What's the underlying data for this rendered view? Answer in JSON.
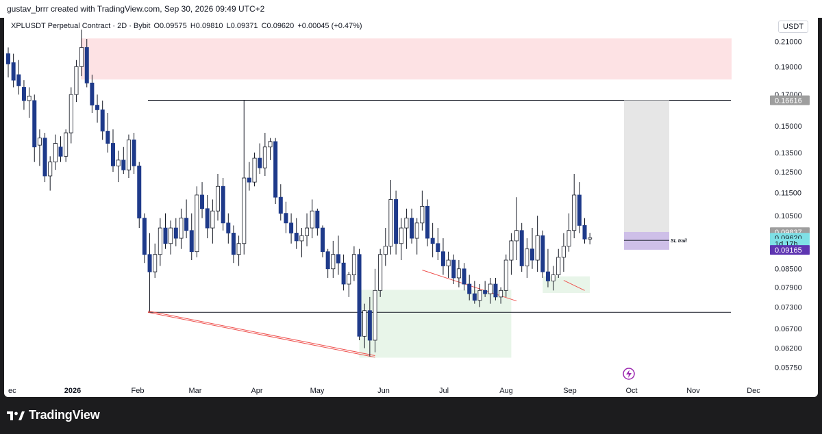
{
  "header": {
    "caption": "gustav_brrr created with TradingView.com, Sep 30, 2026 09:49 UTC+2"
  },
  "legend": {
    "symbol": "XPLUSDT Perpetual Contract · 2D · Bybit",
    "open": "O0.09575",
    "high": "H0.09810",
    "low": "L0.09371",
    "close": "C0.09620",
    "change": "+0.00045 (+0.47%)"
  },
  "currency": "USDT",
  "colors": {
    "bull": "#ffffff",
    "bear": "#1e3a8a",
    "supply_zone": "#fde2e4",
    "demand_zone": "#e8f5e9",
    "trendline": "#ef5350",
    "position_stop": "#b39ddb",
    "position_target": "#e6e6e6"
  },
  "chart_data": {
    "type": "candlestick",
    "y_scale": "log",
    "ylim": [
      0.0545,
      0.2245
    ],
    "y_ticks": [
      "0.21000",
      "0.19000",
      "0.17000",
      "0.15000",
      "0.13500",
      "0.12500",
      "0.11500",
      "0.10500",
      "0.08500",
      "0.07900",
      "0.07300",
      "0.06700",
      "0.06200",
      "0.05750"
    ],
    "x_ticks": [
      "ec",
      "2026",
      "Feb",
      "Mar",
      "Apr",
      "May",
      "Jun",
      "Jul",
      "Aug",
      "Sep",
      "Oct",
      "Nov",
      "Dec"
    ],
    "price_labels": [
      {
        "text": "0.16616",
        "value": 0.16616,
        "style": "gray"
      },
      {
        "text": "0.09837",
        "value": 0.09837,
        "style": "gray"
      },
      {
        "text": "0.09620",
        "value": 0.0962,
        "style": "cyan"
      },
      {
        "text": "1d 17h",
        "value": 0.094,
        "style": "cyan"
      },
      {
        "text": "0.09165",
        "value": 0.09165,
        "style": "purple"
      }
    ],
    "horizontal_levels": [
      0.1662,
      0.0715
    ],
    "annotations": [
      {
        "text": "SL trail",
        "value": 0.0952
      }
    ],
    "candles": [
      {
        "open": 0.2,
        "high": 0.205,
        "low": 0.182,
        "close": 0.192
      },
      {
        "open": 0.193,
        "high": 0.2,
        "low": 0.175,
        "close": 0.18
      },
      {
        "open": 0.184,
        "high": 0.195,
        "low": 0.17,
        "close": 0.176
      },
      {
        "open": 0.175,
        "high": 0.18,
        "low": 0.16,
        "close": 0.166
      },
      {
        "open": 0.166,
        "high": 0.175,
        "low": 0.155,
        "close": 0.169
      },
      {
        "open": 0.166,
        "high": 0.17,
        "low": 0.13,
        "close": 0.138
      },
      {
        "open": 0.139,
        "high": 0.148,
        "low": 0.128,
        "close": 0.143
      },
      {
        "open": 0.143,
        "high": 0.146,
        "low": 0.12,
        "close": 0.123
      },
      {
        "open": 0.123,
        "high": 0.133,
        "low": 0.116,
        "close": 0.13
      },
      {
        "open": 0.13,
        "high": 0.145,
        "low": 0.126,
        "close": 0.14
      },
      {
        "open": 0.138,
        "high": 0.144,
        "low": 0.13,
        "close": 0.133
      },
      {
        "open": 0.133,
        "high": 0.148,
        "low": 0.13,
        "close": 0.146
      },
      {
        "open": 0.146,
        "high": 0.175,
        "low": 0.14,
        "close": 0.17
      },
      {
        "open": 0.17,
        "high": 0.195,
        "low": 0.165,
        "close": 0.19
      },
      {
        "open": 0.19,
        "high": 0.22,
        "low": 0.183,
        "close": 0.205
      },
      {
        "open": 0.205,
        "high": 0.212,
        "low": 0.175,
        "close": 0.178
      },
      {
        "open": 0.178,
        "high": 0.184,
        "low": 0.158,
        "close": 0.163
      },
      {
        "open": 0.163,
        "high": 0.17,
        "low": 0.152,
        "close": 0.16
      },
      {
        "open": 0.16,
        "high": 0.166,
        "low": 0.142,
        "close": 0.147
      },
      {
        "open": 0.147,
        "high": 0.158,
        "low": 0.135,
        "close": 0.14
      },
      {
        "open": 0.14,
        "high": 0.148,
        "low": 0.125,
        "close": 0.128
      },
      {
        "open": 0.128,
        "high": 0.136,
        "low": 0.12,
        "close": 0.131
      },
      {
        "open": 0.131,
        "high": 0.138,
        "low": 0.124,
        "close": 0.126
      },
      {
        "open": 0.126,
        "high": 0.145,
        "low": 0.122,
        "close": 0.142
      },
      {
        "open": 0.142,
        "high": 0.146,
        "low": 0.124,
        "close": 0.128
      },
      {
        "open": 0.128,
        "high": 0.13,
        "low": 0.1,
        "close": 0.104
      },
      {
        "open": 0.104,
        "high": 0.106,
        "low": 0.087,
        "close": 0.09
      },
      {
        "open": 0.09,
        "high": 0.098,
        "low": 0.083,
        "close": 0.084
      },
      {
        "open": 0.084,
        "high": 0.094,
        "low": 0.082,
        "close": 0.09
      },
      {
        "open": 0.09,
        "high": 0.104,
        "low": 0.086,
        "close": 0.1
      },
      {
        "open": 0.1,
        "high": 0.106,
        "low": 0.092,
        "close": 0.094
      },
      {
        "open": 0.094,
        "high": 0.103,
        "low": 0.09,
        "close": 0.1
      },
      {
        "open": 0.1,
        "high": 0.104,
        "low": 0.093,
        "close": 0.096
      },
      {
        "open": 0.096,
        "high": 0.108,
        "low": 0.092,
        "close": 0.104
      },
      {
        "open": 0.104,
        "high": 0.112,
        "low": 0.096,
        "close": 0.099
      },
      {
        "open": 0.099,
        "high": 0.106,
        "low": 0.088,
        "close": 0.091
      },
      {
        "open": 0.091,
        "high": 0.118,
        "low": 0.089,
        "close": 0.114
      },
      {
        "open": 0.114,
        "high": 0.12,
        "low": 0.104,
        "close": 0.108
      },
      {
        "open": 0.108,
        "high": 0.114,
        "low": 0.096,
        "close": 0.1
      },
      {
        "open": 0.1,
        "high": 0.112,
        "low": 0.094,
        "close": 0.107
      },
      {
        "open": 0.107,
        "high": 0.124,
        "low": 0.103,
        "close": 0.118
      },
      {
        "open": 0.118,
        "high": 0.122,
        "low": 0.099,
        "close": 0.102
      },
      {
        "open": 0.102,
        "high": 0.106,
        "low": 0.094,
        "close": 0.098
      },
      {
        "open": 0.098,
        "high": 0.101,
        "low": 0.087,
        "close": 0.09
      },
      {
        "open": 0.09,
        "high": 0.097,
        "low": 0.086,
        "close": 0.094
      },
      {
        "open": 0.094,
        "high": 0.166,
        "low": 0.09,
        "close": 0.122
      },
      {
        "open": 0.122,
        "high": 0.13,
        "low": 0.116,
        "close": 0.12
      },
      {
        "open": 0.12,
        "high": 0.135,
        "low": 0.118,
        "close": 0.132
      },
      {
        "open": 0.132,
        "high": 0.14,
        "low": 0.124,
        "close": 0.127
      },
      {
        "open": 0.127,
        "high": 0.146,
        "low": 0.123,
        "close": 0.138
      },
      {
        "open": 0.138,
        "high": 0.143,
        "low": 0.131,
        "close": 0.141
      },
      {
        "open": 0.141,
        "high": 0.143,
        "low": 0.11,
        "close": 0.113
      },
      {
        "open": 0.113,
        "high": 0.119,
        "low": 0.103,
        "close": 0.106
      },
      {
        "open": 0.106,
        "high": 0.111,
        "low": 0.098,
        "close": 0.102
      },
      {
        "open": 0.102,
        "high": 0.106,
        "low": 0.094,
        "close": 0.098
      },
      {
        "open": 0.098,
        "high": 0.104,
        "low": 0.092,
        "close": 0.095
      },
      {
        "open": 0.095,
        "high": 0.1,
        "low": 0.089,
        "close": 0.097
      },
      {
        "open": 0.097,
        "high": 0.106,
        "low": 0.093,
        "close": 0.1
      },
      {
        "open": 0.1,
        "high": 0.112,
        "low": 0.096,
        "close": 0.107
      },
      {
        "open": 0.107,
        "high": 0.108,
        "low": 0.097,
        "close": 0.1
      },
      {
        "open": 0.1,
        "high": 0.101,
        "low": 0.089,
        "close": 0.091
      },
      {
        "open": 0.091,
        "high": 0.092,
        "low": 0.082,
        "close": 0.085
      },
      {
        "open": 0.085,
        "high": 0.095,
        "low": 0.082,
        "close": 0.09
      },
      {
        "open": 0.09,
        "high": 0.097,
        "low": 0.083,
        "close": 0.087
      },
      {
        "open": 0.087,
        "high": 0.09,
        "low": 0.078,
        "close": 0.08
      },
      {
        "open": 0.08,
        "high": 0.084,
        "low": 0.076,
        "close": 0.083
      },
      {
        "open": 0.083,
        "high": 0.093,
        "low": 0.081,
        "close": 0.09
      },
      {
        "open": 0.09,
        "high": 0.092,
        "low": 0.064,
        "close": 0.065
      },
      {
        "open": 0.065,
        "high": 0.074,
        "low": 0.062,
        "close": 0.072
      },
      {
        "open": 0.072,
        "high": 0.076,
        "low": 0.06,
        "close": 0.064
      },
      {
        "open": 0.064,
        "high": 0.085,
        "low": 0.061,
        "close": 0.078
      },
      {
        "open": 0.078,
        "high": 0.092,
        "low": 0.076,
        "close": 0.09
      },
      {
        "open": 0.09,
        "high": 0.1,
        "low": 0.086,
        "close": 0.093
      },
      {
        "open": 0.093,
        "high": 0.121,
        "low": 0.09,
        "close": 0.112
      },
      {
        "open": 0.112,
        "high": 0.116,
        "low": 0.09,
        "close": 0.094
      },
      {
        "open": 0.094,
        "high": 0.104,
        "low": 0.088,
        "close": 0.1
      },
      {
        "open": 0.1,
        "high": 0.108,
        "low": 0.092,
        "close": 0.104
      },
      {
        "open": 0.104,
        "high": 0.108,
        "low": 0.094,
        "close": 0.096
      },
      {
        "open": 0.096,
        "high": 0.104,
        "low": 0.09,
        "close": 0.102
      },
      {
        "open": 0.102,
        "high": 0.116,
        "low": 0.099,
        "close": 0.109
      },
      {
        "open": 0.109,
        "high": 0.112,
        "low": 0.093,
        "close": 0.096
      },
      {
        "open": 0.096,
        "high": 0.102,
        "low": 0.089,
        "close": 0.094
      },
      {
        "open": 0.094,
        "high": 0.1,
        "low": 0.088,
        "close": 0.091
      },
      {
        "open": 0.091,
        "high": 0.096,
        "low": 0.083,
        "close": 0.086
      },
      {
        "open": 0.086,
        "high": 0.091,
        "low": 0.082,
        "close": 0.088
      },
      {
        "open": 0.088,
        "high": 0.09,
        "low": 0.08,
        "close": 0.082
      },
      {
        "open": 0.082,
        "high": 0.088,
        "low": 0.079,
        "close": 0.085
      },
      {
        "open": 0.085,
        "high": 0.087,
        "low": 0.078,
        "close": 0.08
      },
      {
        "open": 0.08,
        "high": 0.083,
        "low": 0.075,
        "close": 0.077
      },
      {
        "open": 0.077,
        "high": 0.081,
        "low": 0.074,
        "close": 0.075
      },
      {
        "open": 0.075,
        "high": 0.08,
        "low": 0.073,
        "close": 0.078
      },
      {
        "open": 0.078,
        "high": 0.081,
        "low": 0.076,
        "close": 0.077
      },
      {
        "open": 0.077,
        "high": 0.082,
        "low": 0.074,
        "close": 0.08
      },
      {
        "open": 0.08,
        "high": 0.082,
        "low": 0.075,
        "close": 0.076
      },
      {
        "open": 0.076,
        "high": 0.079,
        "low": 0.074,
        "close": 0.078
      },
      {
        "open": 0.078,
        "high": 0.09,
        "low": 0.076,
        "close": 0.088
      },
      {
        "open": 0.088,
        "high": 0.098,
        "low": 0.083,
        "close": 0.095
      },
      {
        "open": 0.095,
        "high": 0.113,
        "low": 0.088,
        "close": 0.099
      },
      {
        "open": 0.099,
        "high": 0.102,
        "low": 0.084,
        "close": 0.086
      },
      {
        "open": 0.086,
        "high": 0.096,
        "low": 0.082,
        "close": 0.092
      },
      {
        "open": 0.092,
        "high": 0.1,
        "low": 0.085,
        "close": 0.088
      },
      {
        "open": 0.088,
        "high": 0.105,
        "low": 0.084,
        "close": 0.097
      },
      {
        "open": 0.097,
        "high": 0.099,
        "low": 0.082,
        "close": 0.084
      },
      {
        "open": 0.084,
        "high": 0.092,
        "low": 0.079,
        "close": 0.081
      },
      {
        "open": 0.081,
        "high": 0.086,
        "low": 0.078,
        "close": 0.083
      },
      {
        "open": 0.083,
        "high": 0.092,
        "low": 0.082,
        "close": 0.089
      },
      {
        "open": 0.089,
        "high": 0.098,
        "low": 0.084,
        "close": 0.093
      },
      {
        "open": 0.093,
        "high": 0.106,
        "low": 0.091,
        "close": 0.099
      },
      {
        "open": 0.099,
        "high": 0.124,
        "low": 0.096,
        "close": 0.114
      },
      {
        "open": 0.114,
        "high": 0.12,
        "low": 0.098,
        "close": 0.101
      },
      {
        "open": 0.101,
        "high": 0.104,
        "low": 0.094,
        "close": 0.0957
      },
      {
        "open": 0.0957,
        "high": 0.0981,
        "low": 0.0937,
        "close": 0.0962
      }
    ]
  }
}
